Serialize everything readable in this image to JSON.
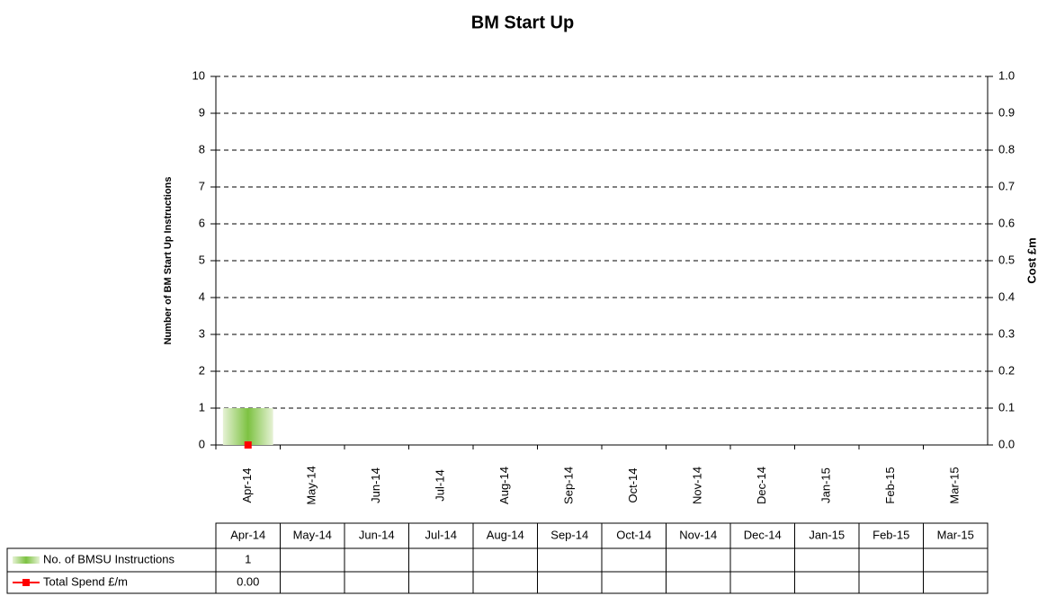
{
  "chart_data": {
    "type": "bar-line",
    "title": "BM Start Up",
    "y_label": "Number of BM Start Up Instructions",
    "y2_label": "Cost £m",
    "categories": [
      "Apr-14",
      "May-14",
      "Jun-14",
      "Jul-14",
      "Aug-14",
      "Sep-14",
      "Oct-14",
      "Nov-14",
      "Dec-14",
      "Jan-15",
      "Feb-15",
      "Mar-15"
    ],
    "series": [
      {
        "name": "No. of BMSU Instructions",
        "type": "bar",
        "color": "#7dc242",
        "values": [
          1,
          null,
          null,
          null,
          null,
          null,
          null,
          null,
          null,
          null,
          null,
          null
        ]
      },
      {
        "name": "Total Spend £/m",
        "type": "line",
        "axis": "y2",
        "color": "#ff0000",
        "values": [
          0,
          null,
          null,
          null,
          null,
          null,
          null,
          null,
          null,
          null,
          null,
          null
        ],
        "value_labels": [
          "0.00",
          null,
          null,
          null,
          null,
          null,
          null,
          null,
          null,
          null,
          null,
          null
        ]
      }
    ],
    "ylim": [
      0,
      10
    ],
    "yticks": [
      0,
      1,
      2,
      3,
      4,
      5,
      6,
      7,
      8,
      9,
      10
    ],
    "y2lim": [
      0,
      1
    ],
    "y2ticks": [
      {
        "value": 0,
        "label": "0.0"
      },
      0.1,
      0.2,
      0.3,
      0.4,
      0.5,
      0.6,
      0.7,
      0.8,
      0.9,
      {
        "value": 1,
        "label": "1.0"
      }
    ],
    "grid": true,
    "data_table": true
  }
}
